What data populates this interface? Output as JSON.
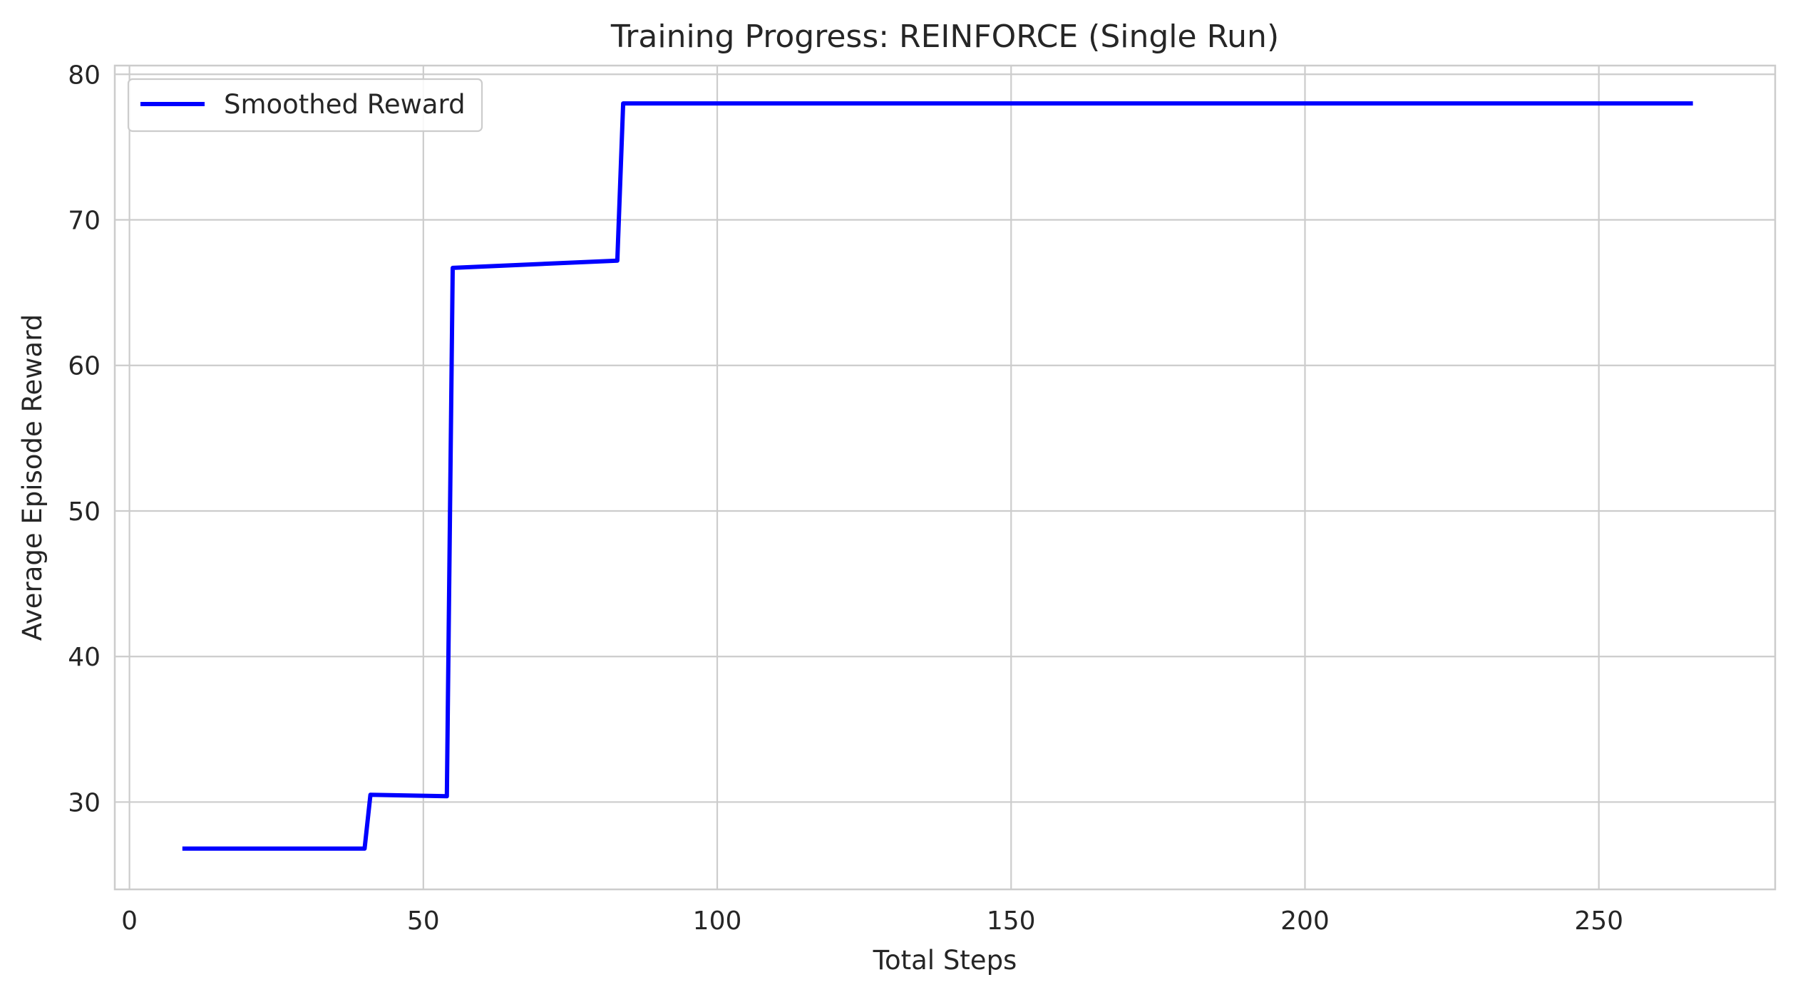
{
  "chart_data": {
    "type": "line",
    "title": "Training Progress: REINFORCE (Single Run)",
    "xlabel": "Total Steps",
    "ylabel": "Average Episode Reward",
    "xlim": [
      -2.5,
      280
    ],
    "ylim": [
      24,
      80.6
    ],
    "xticks": [
      0,
      50,
      100,
      150,
      200,
      250
    ],
    "yticks": [
      30,
      40,
      50,
      60,
      70,
      80
    ],
    "grid": true,
    "legend_position": "top-left",
    "series": [
      {
        "name": "Smoothed Reward",
        "color": "#0000ff",
        "x": [
          9,
          40,
          41,
          54,
          55,
          83,
          84,
          266
        ],
        "y": [
          26.8,
          26.8,
          30.5,
          30.4,
          66.7,
          67.2,
          78.0,
          78.0
        ]
      }
    ]
  }
}
